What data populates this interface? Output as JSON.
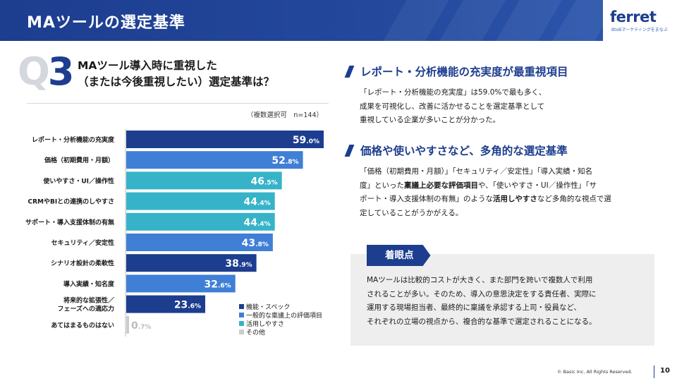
{
  "header": {
    "title": "MAツールの選定基準"
  },
  "logo": {
    "name": "ferret",
    "tagline": "BtoBマーケティングをまなぶ"
  },
  "question": {
    "q_letter": "Q",
    "q_digit": "3",
    "line1": "MAツール導入時に重視した",
    "line2": "（または今後重視したい）選定基準は？"
  },
  "chart_note": "（複数選択可　n=144）",
  "chart_data": {
    "type": "bar",
    "orientation": "horizontal",
    "title": "",
    "xlabel": "",
    "ylabel": "",
    "xlim": [
      0,
      60
    ],
    "grid": false,
    "legend_position": "bottom-right",
    "categories": [
      "レポート・分析機能の充実度",
      "価格（初期費用・月額）",
      "使いやすさ・UI／操作性",
      "CRMやBIとの連携のしやすさ",
      "サポート・導入支援体制の有無",
      "セキュリティ／安定性",
      "シナリオ設計の柔軟性",
      "導入実績・知名度",
      "将来的な拡張性／フェーズへの適応力",
      "あてはまるものはない"
    ],
    "values": [
      59.0,
      52.8,
      46.5,
      44.4,
      44.4,
      43.8,
      38.9,
      32.6,
      23.6,
      0.7
    ],
    "value_labels_int": [
      "59",
      "52",
      "46",
      "44",
      "44",
      "43",
      "38",
      "32",
      "23",
      "0"
    ],
    "value_labels_dec": [
      ".0%",
      ".8%",
      ".5%",
      ".4%",
      ".4%",
      ".8%",
      ".9%",
      ".6%",
      ".6%",
      ".7%"
    ],
    "groups": [
      "spec",
      "general",
      "usability",
      "usability",
      "usability",
      "general",
      "spec",
      "general",
      "spec",
      "other"
    ],
    "legend": [
      {
        "key": "spec",
        "label": "機能・スペック",
        "color": "#1d3d8f"
      },
      {
        "key": "general",
        "label": "一般的な稟議上の評価項目",
        "color": "#3f7fd6"
      },
      {
        "key": "usability",
        "label": "活用しやすさ",
        "color": "#36b3c9"
      },
      {
        "key": "other",
        "label": "その他",
        "color": "#cccccc"
      }
    ]
  },
  "section1": {
    "title": "レポート・分析機能の充実度が最重視項目",
    "lines": [
      "「レポート・分析機能の充実度」は59.0%で最も多く、",
      "成果を可視化し、改善に活かせることを選定基準として",
      "重視している企業が多いことが分かった。"
    ]
  },
  "section2": {
    "title": "価格や使いやすさなど、多角的な選定基準",
    "line1": "「価格（初期費用・月額）」「セキュリティ／安定性」「導入実績・知名",
    "line2_a": "度」といった",
    "line2_b": "稟議上必要な評価項目",
    "line2_c": "や、「使いやすさ・UI／操作性」「サ",
    "line3_a": "ポート・導入支援体制の有無」のような",
    "line3_b": "活用しやすさ",
    "line3_c": "など多角的な視点で選",
    "line4": "定していることがうかがえる。"
  },
  "focus": {
    "tag": "着眼点",
    "lines": [
      "MAツールは比較的コストが大きく、また部門を跨いで複数人で利用",
      "されることが多い。そのため、導入の意思決定をする責任者、実際に",
      "運用する現場担当者、最終的に稟議を承認する上司・役員など、",
      "それぞれの立場の視点から、複合的な基準で選定されることになる。"
    ]
  },
  "footer": {
    "copyright": "© Basic Inc. All Rights Reserved.",
    "page": "10"
  }
}
